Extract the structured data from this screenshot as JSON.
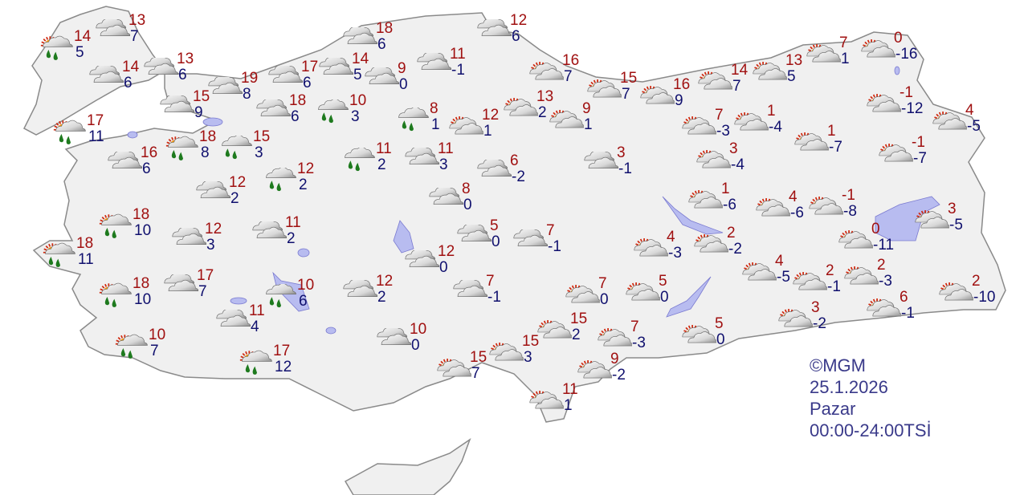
{
  "credit": {
    "copyright": "©MGM",
    "date": "25.1.2026",
    "day": "Pazar",
    "period": "00:00-24:00TSİ"
  },
  "colors": {
    "land": "#f0f0f0",
    "border": "#8a8a8a",
    "water": "#b8bcf0",
    "max_temp": "#a01010",
    "min_temp": "#10106e",
    "rain_drop": "#1e7a1e"
  },
  "icon_types": {
    "c": "cloudy-icon",
    "ps": "partly-sunny-icon",
    "r": "rain-icon",
    "psr": "sun-cloud-rain-icon"
  },
  "stations": [
    {
      "cond": "c",
      "max": "13",
      "min": "7"
    },
    {
      "cond": "psr",
      "max": "14",
      "min": "5"
    },
    {
      "cond": "c",
      "max": "14",
      "min": "6"
    },
    {
      "cond": "c",
      "max": "13",
      "min": "6"
    },
    {
      "cond": "c",
      "max": "19",
      "min": "8"
    },
    {
      "cond": "c",
      "max": "15",
      "min": "9"
    },
    {
      "cond": "psr",
      "max": "17",
      "min": "11"
    },
    {
      "cond": "psr",
      "max": "18",
      "min": "8"
    },
    {
      "cond": "c",
      "max": "16",
      "min": "6"
    },
    {
      "cond": "r",
      "max": "15",
      "min": "3"
    },
    {
      "cond": "c",
      "max": "17",
      "min": "6"
    },
    {
      "cond": "c",
      "max": "14",
      "min": "5"
    },
    {
      "cond": "c",
      "max": "18",
      "min": "6"
    },
    {
      "cond": "c",
      "max": "18",
      "min": "6"
    },
    {
      "cond": "r",
      "max": "10",
      "min": "3"
    },
    {
      "cond": "c",
      "max": "9",
      "min": "0"
    },
    {
      "cond": "c",
      "max": "11",
      "min": "-1"
    },
    {
      "cond": "c",
      "max": "12",
      "min": "6"
    },
    {
      "cond": "r",
      "max": "8",
      "min": "1"
    },
    {
      "cond": "ps",
      "max": "12",
      "min": "1"
    },
    {
      "cond": "ps",
      "max": "13",
      "min": "2"
    },
    {
      "cond": "ps",
      "max": "9",
      "min": "1"
    },
    {
      "cond": "ps",
      "max": "16",
      "min": "7"
    },
    {
      "cond": "ps",
      "max": "15",
      "min": "7"
    },
    {
      "cond": "ps",
      "max": "16",
      "min": "9"
    },
    {
      "cond": "ps",
      "max": "14",
      "min": "7"
    },
    {
      "cond": "ps",
      "max": "13",
      "min": "5"
    },
    {
      "cond": "ps",
      "max": "7",
      "min": "1"
    },
    {
      "cond": "ps",
      "max": "0",
      "min": "-16"
    },
    {
      "cond": "ps",
      "max": "-1",
      "min": "-12"
    },
    {
      "cond": "ps",
      "max": "4",
      "min": "-5"
    },
    {
      "cond": "ps",
      "max": "-1",
      "min": "-7"
    },
    {
      "cond": "ps",
      "max": "7",
      "min": "-3"
    },
    {
      "cond": "ps",
      "max": "1",
      "min": "-4"
    },
    {
      "cond": "ps",
      "max": "1",
      "min": "-7"
    },
    {
      "cond": "ps",
      "max": "3",
      "min": "-4"
    },
    {
      "cond": "c",
      "max": "3",
      "min": "-1"
    },
    {
      "cond": "c",
      "max": "6",
      "min": "-2"
    },
    {
      "cond": "c",
      "max": "11",
      "min": "3"
    },
    {
      "cond": "r",
      "max": "11",
      "min": "2"
    },
    {
      "cond": "r",
      "max": "12",
      "min": "2"
    },
    {
      "cond": "c",
      "max": "12",
      "min": "2"
    },
    {
      "cond": "c",
      "max": "8",
      "min": "0"
    },
    {
      "cond": "psr",
      "max": "18",
      "min": "10"
    },
    {
      "cond": "c",
      "max": "12",
      "min": "3"
    },
    {
      "cond": "c",
      "max": "11",
      "min": "2"
    },
    {
      "cond": "psr",
      "max": "18",
      "min": "11"
    },
    {
      "cond": "c",
      "max": "5",
      "min": "0"
    },
    {
      "cond": "c",
      "max": "7",
      "min": "-1"
    },
    {
      "cond": "c",
      "max": "12",
      "min": "0"
    },
    {
      "cond": "psr",
      "max": "18",
      "min": "10"
    },
    {
      "cond": "c",
      "max": "17",
      "min": "7"
    },
    {
      "cond": "r",
      "max": "10",
      "min": "6"
    },
    {
      "cond": "c",
      "max": "12",
      "min": "2"
    },
    {
      "cond": "c",
      "max": "7",
      "min": "-1"
    },
    {
      "cond": "c",
      "max": "11",
      "min": "4"
    },
    {
      "cond": "psr",
      "max": "10",
      "min": "7"
    },
    {
      "cond": "psr",
      "max": "17",
      "min": "12"
    },
    {
      "cond": "c",
      "max": "10",
      "min": "0"
    },
    {
      "cond": "ps",
      "max": "15",
      "min": "7"
    },
    {
      "cond": "ps",
      "max": "15",
      "min": "3"
    },
    {
      "cond": "ps",
      "max": "15",
      "min": "2"
    },
    {
      "cond": "ps",
      "max": "7",
      "min": "-3"
    },
    {
      "cond": "ps",
      "max": "7",
      "min": "0"
    },
    {
      "cond": "ps",
      "max": "5",
      "min": "0"
    },
    {
      "cond": "ps",
      "max": "9",
      "min": "-2"
    },
    {
      "cond": "ps",
      "max": "11",
      "min": "1"
    },
    {
      "cond": "ps",
      "max": "5",
      "min": "0"
    },
    {
      "cond": "ps",
      "max": "4",
      "min": "-3"
    },
    {
      "cond": "ps",
      "max": "2",
      "min": "-2"
    },
    {
      "cond": "ps",
      "max": "1",
      "min": "-6"
    },
    {
      "cond": "ps",
      "max": "4",
      "min": "-6"
    },
    {
      "cond": "ps",
      "max": "-1",
      "min": "-8"
    },
    {
      "cond": "ps",
      "max": "0",
      "min": "-11"
    },
    {
      "cond": "ps",
      "max": "3",
      "min": "-5"
    },
    {
      "cond": "ps",
      "max": "4",
      "min": "-5"
    },
    {
      "cond": "ps",
      "max": "2",
      "min": "-1"
    },
    {
      "cond": "ps",
      "max": "2",
      "min": "-3"
    },
    {
      "cond": "ps",
      "max": "2",
      "min": "-10"
    },
    {
      "cond": "ps",
      "max": "6",
      "min": "-1"
    },
    {
      "cond": "ps",
      "max": "3",
      "min": "-2"
    }
  ]
}
